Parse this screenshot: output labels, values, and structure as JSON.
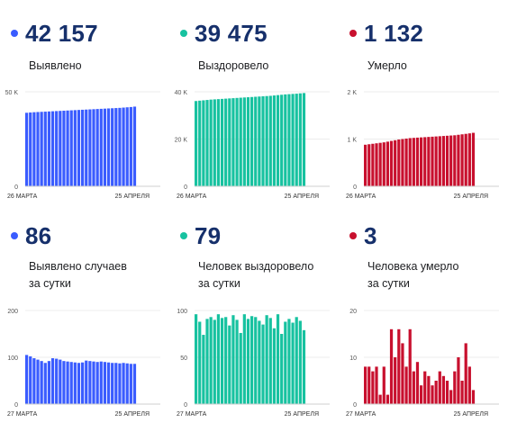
{
  "cards": [
    {
      "value": "42 157",
      "label_lines": [
        "Выявлено"
      ],
      "color": "#3a5cff",
      "chart_data": {
        "type": "bar",
        "ylim": [
          0,
          50000
        ],
        "yticks": [
          "50 K",
          "0"
        ],
        "ytick_values": [
          50000,
          0
        ],
        "x_start": "26 МАРТА",
        "x_end": "25 АПРЕЛЯ",
        "values": [
          38900,
          39050,
          39200,
          39300,
          39400,
          39500,
          39600,
          39700,
          39800,
          39900,
          40000,
          40100,
          40200,
          40300,
          40400,
          40500,
          40600,
          40700,
          40800,
          40900,
          41000,
          41100,
          41200,
          41300,
          41400,
          41500,
          41650,
          41800,
          41950,
          42157
        ]
      }
    },
    {
      "value": "39 475",
      "label_lines": [
        "Выздоровело"
      ],
      "color": "#17c2a0",
      "chart_data": {
        "type": "bar",
        "ylim": [
          0,
          40000
        ],
        "yticks": [
          "40 K",
          "20 K",
          "0"
        ],
        "ytick_values": [
          40000,
          20000,
          0
        ],
        "x_start": "26 МАРТА",
        "x_end": "25 АПРЕЛЯ",
        "values": [
          36100,
          36250,
          36400,
          36550,
          36700,
          36800,
          36900,
          37000,
          37100,
          37200,
          37300,
          37400,
          37500,
          37600,
          37700,
          37800,
          37900,
          38000,
          38100,
          38200,
          38300,
          38450,
          38600,
          38750,
          38900,
          39000,
          39100,
          39200,
          39350,
          39475
        ]
      }
    },
    {
      "value": "1 132",
      "label_lines": [
        "Умерло"
      ],
      "color": "#c8102e",
      "chart_data": {
        "type": "bar",
        "ylim": [
          0,
          2000
        ],
        "yticks": [
          "2 K",
          "1 K",
          "0"
        ],
        "ytick_values": [
          2000,
          1000,
          0
        ],
        "x_start": "26 МАРТА",
        "x_end": "25 АПРЕЛЯ",
        "values": [
          880,
          890,
          900,
          910,
          920,
          930,
          945,
          960,
          975,
          990,
          1000,
          1010,
          1020,
          1025,
          1030,
          1035,
          1040,
          1045,
          1050,
          1055,
          1060,
          1065,
          1070,
          1075,
          1080,
          1090,
          1100,
          1110,
          1120,
          1132
        ]
      }
    },
    {
      "value": "86",
      "label_lines": [
        "Выявлено случаев",
        "за сутки"
      ],
      "color": "#3a5cff",
      "chart_data": {
        "type": "bar",
        "ylim": [
          0,
          200
        ],
        "yticks": [
          "200",
          "100",
          "0"
        ],
        "ytick_values": [
          200,
          100,
          0
        ],
        "x_start": "27 МАРТА",
        "x_end": "25 АПРЕЛЯ",
        "values": [
          105,
          102,
          98,
          95,
          92,
          88,
          92,
          98,
          97,
          95,
          92,
          91,
          90,
          89,
          88,
          89,
          93,
          92,
          91,
          90,
          91,
          90,
          89,
          88,
          88,
          87,
          88,
          87,
          86,
          86
        ]
      }
    },
    {
      "value": "79",
      "label_lines": [
        "Человек выздоровело",
        "за сутки"
      ],
      "color": "#17c2a0",
      "chart_data": {
        "type": "bar",
        "ylim": [
          0,
          100
        ],
        "yticks": [
          "100",
          "50",
          "0"
        ],
        "ytick_values": [
          100,
          50,
          0
        ],
        "x_start": "27 МАРТА",
        "x_end": "25 АПРЕЛЯ",
        "values": [
          96,
          88,
          74,
          91,
          93,
          90,
          96,
          92,
          93,
          84,
          95,
          90,
          76,
          96,
          91,
          94,
          93,
          89,
          85,
          95,
          92,
          81,
          96,
          75,
          88,
          91,
          87,
          93,
          89,
          79
        ]
      }
    },
    {
      "value": "3",
      "label_lines": [
        "Человека умерло",
        "за сутки"
      ],
      "color": "#c8102e",
      "chart_data": {
        "type": "bar",
        "ylim": [
          0,
          20
        ],
        "yticks": [
          "20",
          "10",
          "0"
        ],
        "ytick_values": [
          20,
          10,
          0
        ],
        "x_start": "27 МАРТА",
        "x_end": "25 АПРЕЛЯ",
        "values": [
          8,
          8,
          7,
          8,
          2,
          8,
          2,
          16,
          10,
          16,
          13,
          8,
          16,
          7,
          9,
          4,
          7,
          6,
          4,
          5,
          7,
          6,
          5,
          3,
          7,
          10,
          5,
          13,
          8,
          3
        ]
      }
    }
  ]
}
